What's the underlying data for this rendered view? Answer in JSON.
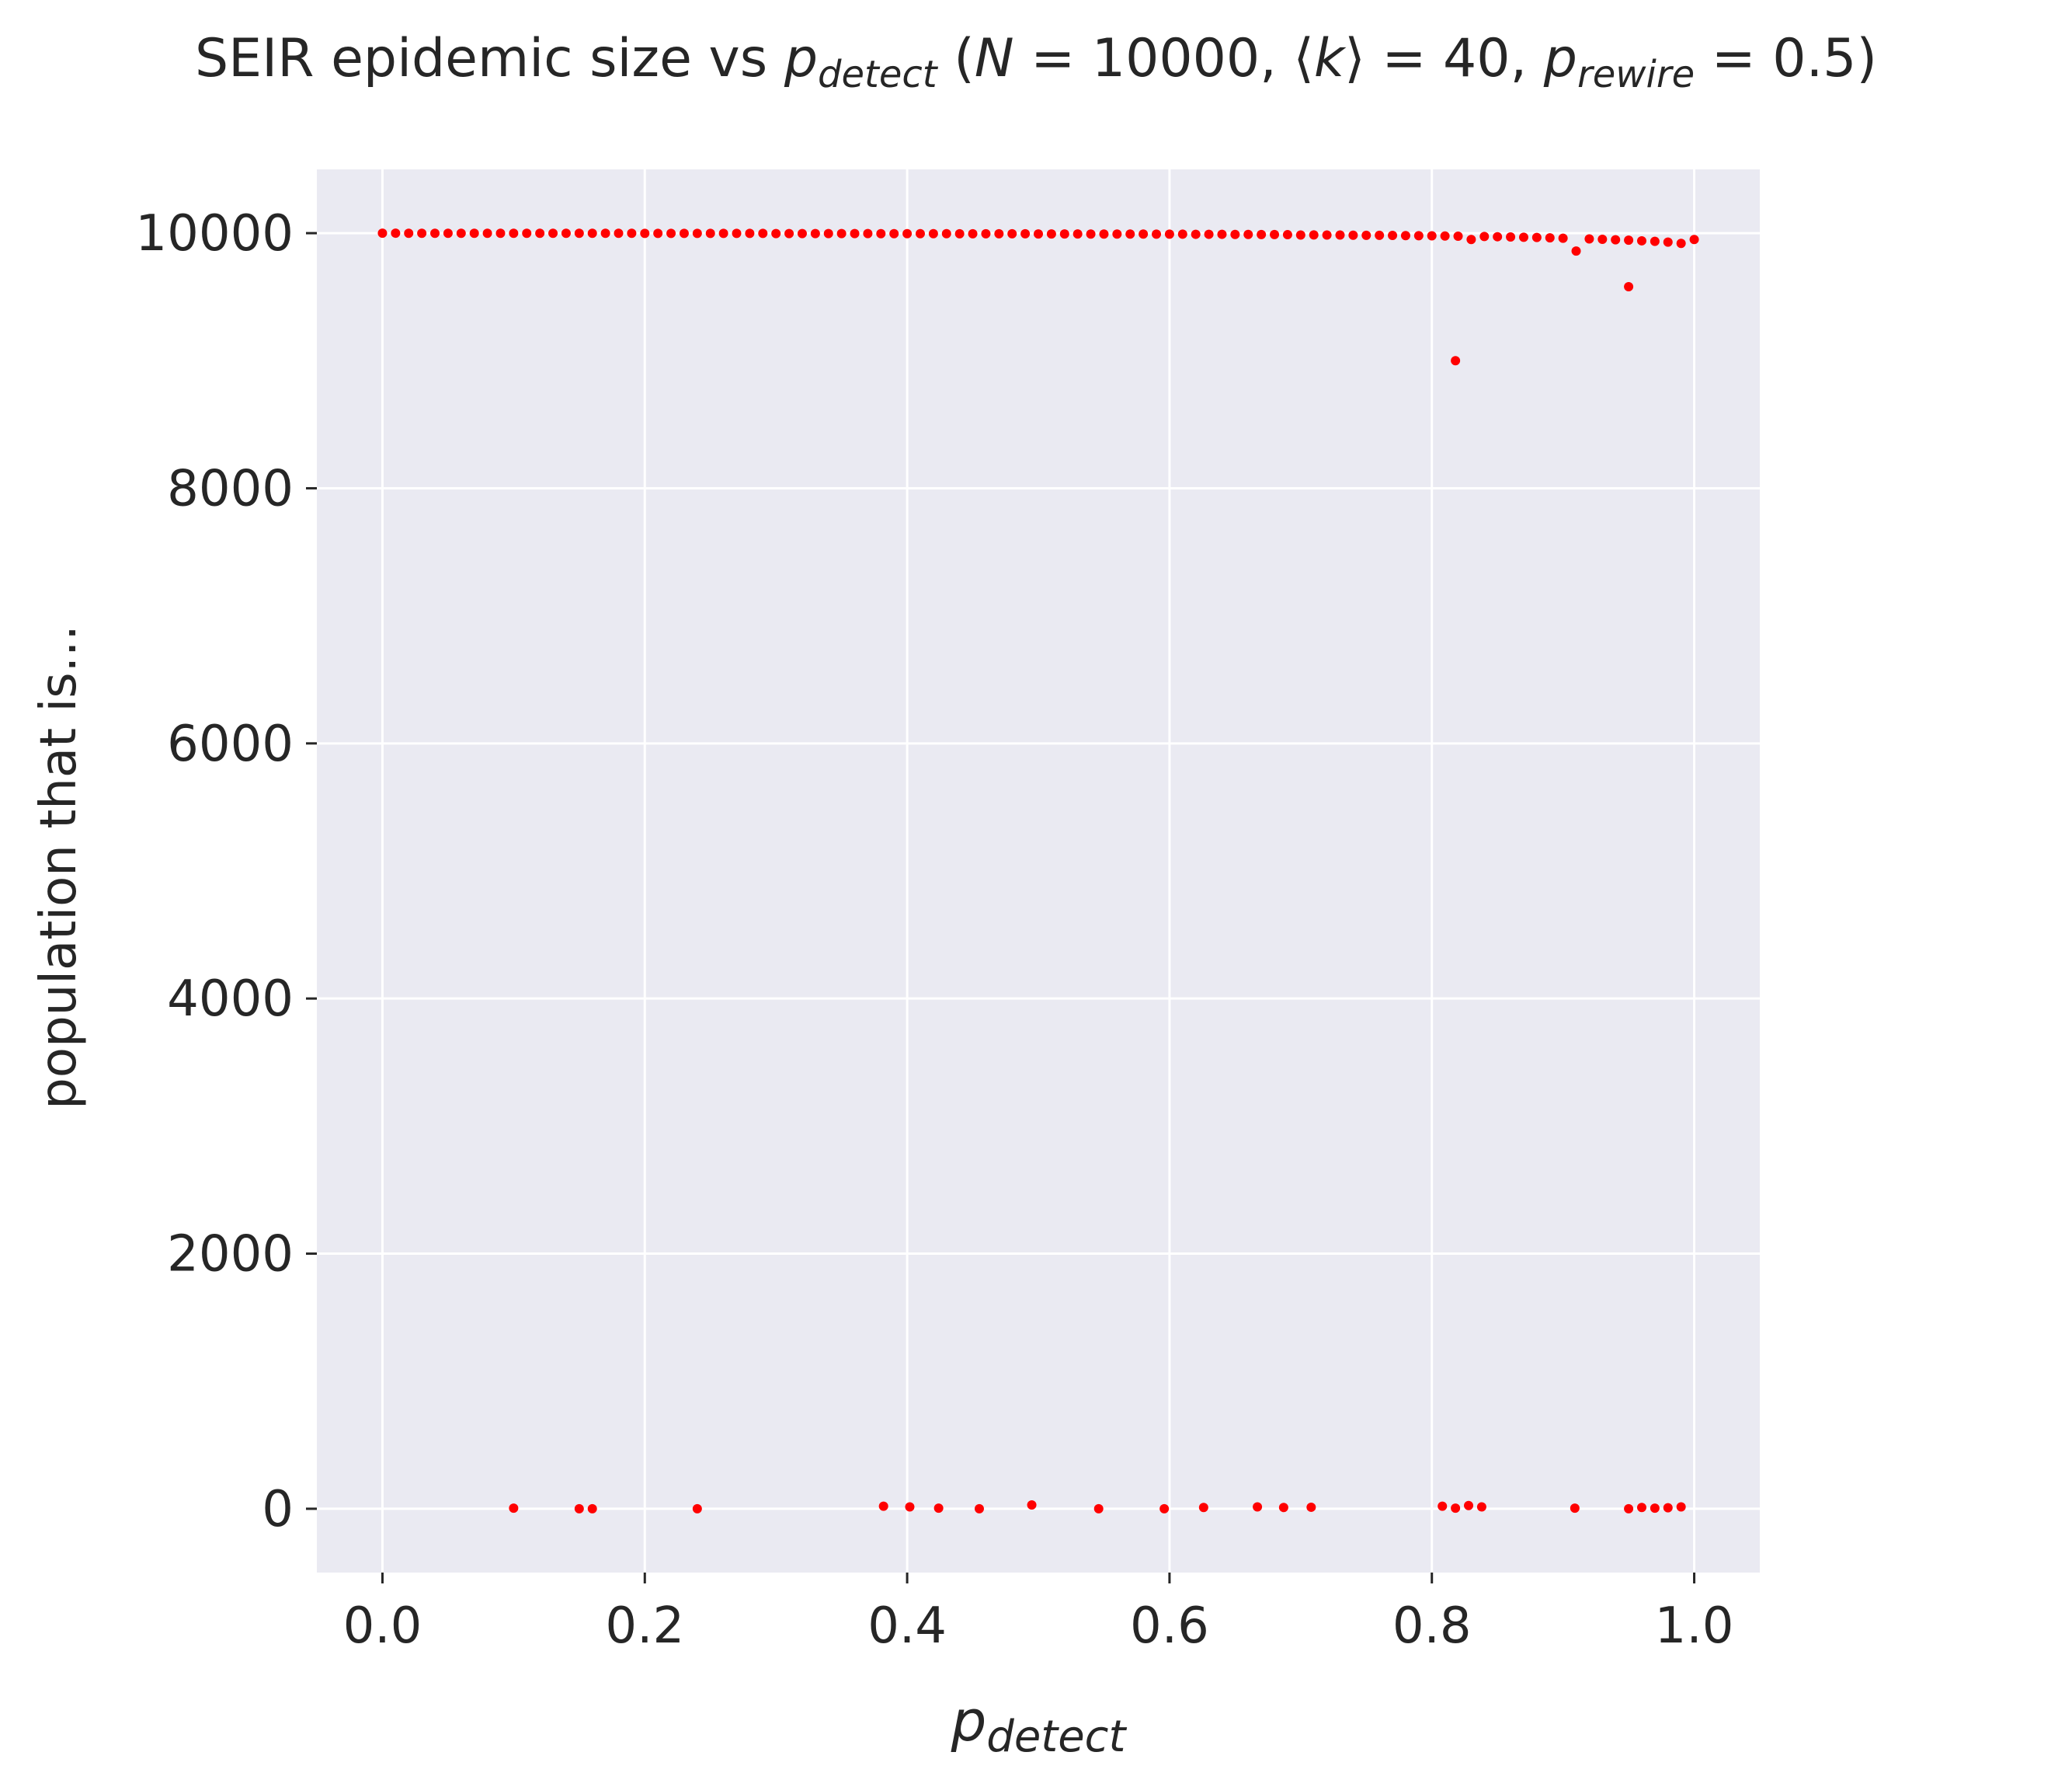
{
  "chart_data": {
    "type": "scatter",
    "title": {
      "prefix": "SEIR epidemic size vs ",
      "p_sym": "p",
      "detect_sub": "detect",
      "open": " (",
      "n_sym": "N",
      "n_eq": " = 10000, ⟨",
      "k_sym": "k",
      "k_eq": "⟩ = 40, ",
      "rewire_sub": "rewire",
      "close": " = 0.5)"
    },
    "xlabel": {
      "sym": "p",
      "sub": "detect"
    },
    "ylabel": "population that is...",
    "xlim": [
      -0.05,
      1.05
    ],
    "ylim": [
      -500,
      10500
    ],
    "xticks": [
      {
        "value": 0.0,
        "label": "0.0"
      },
      {
        "value": 0.2,
        "label": "0.2"
      },
      {
        "value": 0.4,
        "label": "0.4"
      },
      {
        "value": 0.6,
        "label": "0.6"
      },
      {
        "value": 0.8,
        "label": "0.8"
      },
      {
        "value": 1.0,
        "label": "1.0"
      }
    ],
    "yticks": [
      {
        "value": 0,
        "label": "0"
      },
      {
        "value": 2000,
        "label": "2000"
      },
      {
        "value": 4000,
        "label": "4000"
      },
      {
        "value": 6000,
        "label": "6000"
      },
      {
        "value": 8000,
        "label": "8000"
      },
      {
        "value": 10000,
        "label": "10000"
      }
    ],
    "grid": true,
    "marker_color": "#ff0000",
    "background_color": "#eaeaf2",
    "series": [
      {
        "name": "",
        "points": [
          [
            0.0,
            10000
          ],
          [
            0.01,
            10000
          ],
          [
            0.02,
            9999
          ],
          [
            0.03,
            9999
          ],
          [
            0.04,
            9999
          ],
          [
            0.05,
            9999
          ],
          [
            0.06,
            9999
          ],
          [
            0.07,
            9999
          ],
          [
            0.08,
            9999
          ],
          [
            0.09,
            9999
          ],
          [
            0.1,
            9999
          ],
          [
            0.11,
            9999
          ],
          [
            0.12,
            9999
          ],
          [
            0.13,
            9999
          ],
          [
            0.14,
            9999
          ],
          [
            0.15,
            9999
          ],
          [
            0.16,
            9999
          ],
          [
            0.17,
            9999
          ],
          [
            0.18,
            9999
          ],
          [
            0.19,
            9999
          ],
          [
            0.2,
            9998
          ],
          [
            0.21,
            9998
          ],
          [
            0.22,
            9998
          ],
          [
            0.23,
            9998
          ],
          [
            0.24,
            9998
          ],
          [
            0.25,
            9998
          ],
          [
            0.26,
            9998
          ],
          [
            0.27,
            9998
          ],
          [
            0.28,
            9998
          ],
          [
            0.29,
            9998
          ],
          [
            0.3,
            9997
          ],
          [
            0.31,
            9997
          ],
          [
            0.32,
            9997
          ],
          [
            0.33,
            9997
          ],
          [
            0.34,
            9997
          ],
          [
            0.35,
            9997
          ],
          [
            0.36,
            9997
          ],
          [
            0.37,
            9997
          ],
          [
            0.38,
            9996
          ],
          [
            0.39,
            9996
          ],
          [
            0.4,
            9996
          ],
          [
            0.41,
            9996
          ],
          [
            0.42,
            9996
          ],
          [
            0.43,
            9996
          ],
          [
            0.44,
            9995
          ],
          [
            0.45,
            9995
          ],
          [
            0.46,
            9995
          ],
          [
            0.47,
            9995
          ],
          [
            0.48,
            9995
          ],
          [
            0.49,
            9995
          ],
          [
            0.5,
            9994
          ],
          [
            0.51,
            9994
          ],
          [
            0.52,
            9994
          ],
          [
            0.53,
            9994
          ],
          [
            0.54,
            9993
          ],
          [
            0.55,
            9993
          ],
          [
            0.56,
            9993
          ],
          [
            0.57,
            9993
          ],
          [
            0.58,
            9993
          ],
          [
            0.59,
            9992
          ],
          [
            0.6,
            9992
          ],
          [
            0.61,
            9992
          ],
          [
            0.62,
            9991
          ],
          [
            0.63,
            9991
          ],
          [
            0.64,
            9991
          ],
          [
            0.65,
            9990
          ],
          [
            0.66,
            9990
          ],
          [
            0.67,
            9989
          ],
          [
            0.68,
            9989
          ],
          [
            0.69,
            9988
          ],
          [
            0.7,
            9985
          ],
          [
            0.71,
            9986
          ],
          [
            0.72,
            9985
          ],
          [
            0.73,
            9985
          ],
          [
            0.74,
            9984
          ],
          [
            0.75,
            9983
          ],
          [
            0.76,
            9983
          ],
          [
            0.77,
            9982
          ],
          [
            0.78,
            9981
          ],
          [
            0.79,
            9980
          ],
          [
            0.8,
            9979
          ],
          [
            0.81,
            9978
          ],
          [
            0.82,
            9976
          ],
          [
            0.83,
            9950
          ],
          [
            0.84,
            9974
          ],
          [
            0.85,
            9972
          ],
          [
            0.86,
            9970
          ],
          [
            0.87,
            9968
          ],
          [
            0.88,
            9966
          ],
          [
            0.89,
            9963
          ],
          [
            0.9,
            9960
          ],
          [
            0.91,
            9860
          ],
          [
            0.92,
            9955
          ],
          [
            0.93,
            9952
          ],
          [
            0.94,
            9948
          ],
          [
            0.95,
            9945
          ],
          [
            0.96,
            9940
          ],
          [
            0.97,
            9936
          ],
          [
            0.98,
            9930
          ],
          [
            0.99,
            9920
          ],
          [
            1.0,
            9950
          ],
          [
            0.818,
            9000
          ],
          [
            0.95,
            9580
          ],
          [
            0.1,
            5
          ],
          [
            0.15,
            0
          ],
          [
            0.16,
            0
          ],
          [
            0.24,
            0
          ],
          [
            0.382,
            20
          ],
          [
            0.402,
            15
          ],
          [
            0.424,
            5
          ],
          [
            0.455,
            0
          ],
          [
            0.495,
            30
          ],
          [
            0.546,
            0
          ],
          [
            0.596,
            0
          ],
          [
            0.626,
            10
          ],
          [
            0.667,
            15
          ],
          [
            0.687,
            10
          ],
          [
            0.708,
            12
          ],
          [
            0.808,
            20
          ],
          [
            0.818,
            5
          ],
          [
            0.828,
            25
          ],
          [
            0.838,
            15
          ],
          [
            0.909,
            5
          ],
          [
            0.95,
            0
          ],
          [
            0.96,
            10
          ],
          [
            0.97,
            5
          ],
          [
            0.98,
            8
          ],
          [
            0.99,
            15
          ]
        ]
      }
    ]
  }
}
